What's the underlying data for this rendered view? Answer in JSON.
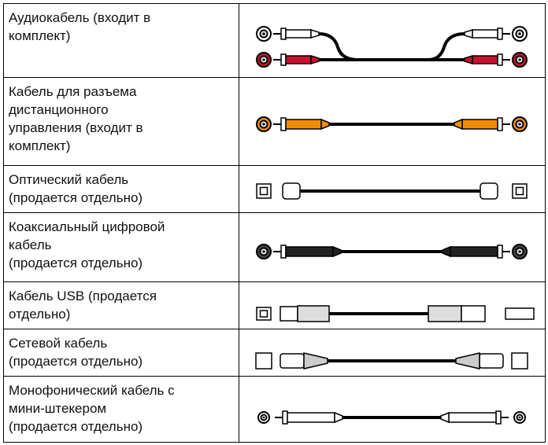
{
  "table": {
    "rows": [
      {
        "lines": [
          "Аудиокабель (входит в",
          "комплект)"
        ]
      },
      {
        "lines": [
          "Кабель для разъема",
          "дистанционного",
          "управления (входит в",
          "комплект)"
        ]
      },
      {
        "lines": [
          "Оптический кабель",
          "(продается отдельно)"
        ]
      },
      {
        "lines": [
          "Коаксиальный цифровой",
          "кабель",
          "(продается отдельно)"
        ]
      },
      {
        "lines": [
          "Кабель USB (продается",
          "отдельно)"
        ]
      },
      {
        "lines": [
          "Сетевой кабель",
          "(продается отдельно)"
        ]
      },
      {
        "lines": [
          "Монофонический кабель с",
          "мини-штекером",
          "(продается отдельно)"
        ]
      }
    ]
  }
}
